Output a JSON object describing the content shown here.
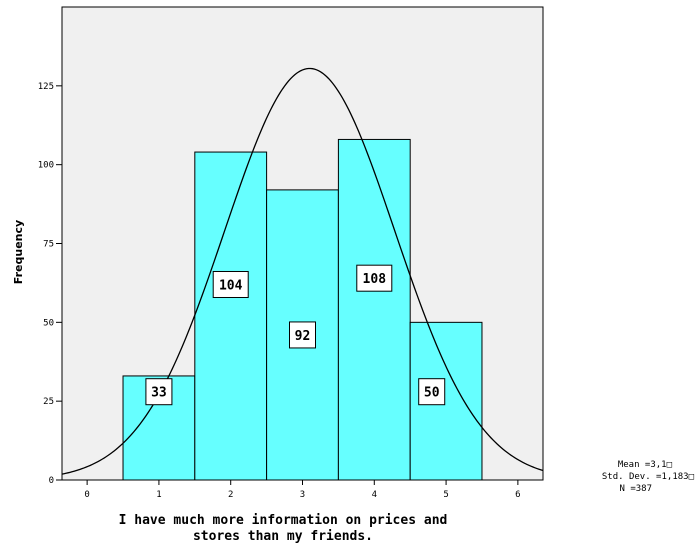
{
  "chart_data": {
    "type": "bar",
    "subtype": "histogram",
    "bins": [
      1,
      2,
      3,
      4,
      5
    ],
    "values": [
      33,
      104,
      92,
      108,
      50
    ],
    "data_labels": [
      "33",
      "104",
      "92",
      "108",
      "50"
    ],
    "xlabel_lines": [
      "I have much more information on prices and",
      "stores than my friends."
    ],
    "ylabel": "Frequency",
    "xlim": [
      -0.35,
      6.35
    ],
    "ylim": [
      0,
      150
    ],
    "xticks": [
      0,
      1,
      2,
      3,
      4,
      5,
      6
    ],
    "yticks": [
      0,
      25,
      50,
      75,
      100,
      125
    ],
    "grid": false,
    "normal_curve": {
      "mean": 3.1,
      "sd": 1.183,
      "n": 387
    },
    "stats_lines": [
      "Mean =3,1□",
      "Std. Dev. =1,183□",
      "N =387"
    ],
    "colors": {
      "bar": "#66ffff",
      "plot_bg": "#f0f0f0",
      "curve": "#000000",
      "edge": "#000000"
    }
  }
}
